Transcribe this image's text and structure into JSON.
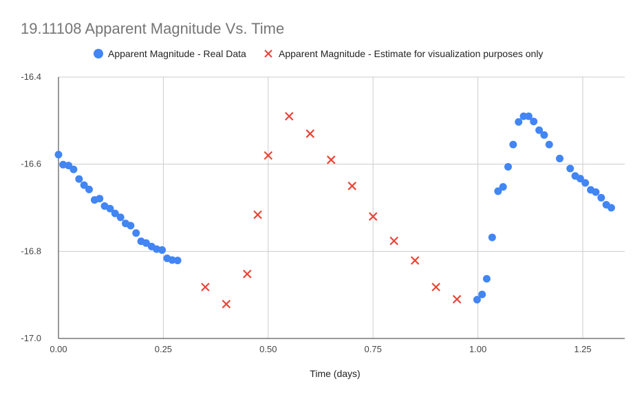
{
  "chart_data": {
    "type": "scatter",
    "title": "19.11108 Apparent Magnitude Vs. Time",
    "xlabel": "Time (days)",
    "ylabel": "",
    "xlim": [
      0,
      1.35
    ],
    "ylim": [
      -17.0,
      -16.4
    ],
    "y_reversed": true,
    "x_ticks": [
      "0.00",
      "0.25",
      "0.50",
      "0.75",
      "1.00",
      "1.25"
    ],
    "x_tick_values": [
      0,
      0.25,
      0.5,
      0.75,
      1.0,
      1.25
    ],
    "y_ticks": [
      "-16.4",
      "-16.6",
      "-16.8",
      "-17.0"
    ],
    "y_tick_values": [
      -16.4,
      -16.6,
      -16.8,
      -17.0
    ],
    "grid": true,
    "legend_position": "top",
    "series": [
      {
        "name": "Apparent Magnitude - Real Data",
        "marker": "circle",
        "color": "#4285f4",
        "points": [
          [
            0.0,
            -16.578
          ],
          [
            0.011,
            -16.601
          ],
          [
            0.024,
            -16.603
          ],
          [
            0.036,
            -16.612
          ],
          [
            0.049,
            -16.634
          ],
          [
            0.061,
            -16.648
          ],
          [
            0.073,
            -16.658
          ],
          [
            0.086,
            -16.682
          ],
          [
            0.098,
            -16.679
          ],
          [
            0.11,
            -16.696
          ],
          [
            0.123,
            -16.702
          ],
          [
            0.135,
            -16.713
          ],
          [
            0.148,
            -16.722
          ],
          [
            0.16,
            -16.736
          ],
          [
            0.172,
            -16.741
          ],
          [
            0.185,
            -16.758
          ],
          [
            0.197,
            -16.777
          ],
          [
            0.209,
            -16.781
          ],
          [
            0.222,
            -16.789
          ],
          [
            0.234,
            -16.795
          ],
          [
            0.247,
            -16.797
          ],
          [
            0.259,
            -16.816
          ],
          [
            0.271,
            -16.82
          ],
          [
            0.284,
            -16.821
          ],
          [
            0.998,
            -16.911
          ],
          [
            1.01,
            -16.899
          ],
          [
            1.021,
            -16.863
          ],
          [
            1.034,
            -16.768
          ],
          [
            1.048,
            -16.662
          ],
          [
            1.06,
            -16.652
          ],
          [
            1.072,
            -16.606
          ],
          [
            1.084,
            -16.555
          ],
          [
            1.097,
            -16.503
          ],
          [
            1.109,
            -16.49
          ],
          [
            1.121,
            -16.49
          ],
          [
            1.133,
            -16.502
          ],
          [
            1.146,
            -16.522
          ],
          [
            1.158,
            -16.533
          ],
          [
            1.17,
            -16.555
          ],
          [
            1.195,
            -16.587
          ],
          [
            1.22,
            -16.61
          ],
          [
            1.232,
            -16.627
          ],
          [
            1.244,
            -16.633
          ],
          [
            1.256,
            -16.643
          ],
          [
            1.269,
            -16.659
          ],
          [
            1.281,
            -16.664
          ],
          [
            1.294,
            -16.677
          ],
          [
            1.306,
            -16.693
          ],
          [
            1.318,
            -16.7
          ]
        ]
      },
      {
        "name": "Apparent Magnitude - Estimate for visualization purposes only",
        "marker": "x",
        "color": "#ea4335",
        "points": [
          [
            0.35,
            -16.882
          ],
          [
            0.4,
            -16.921
          ],
          [
            0.45,
            -16.852
          ],
          [
            0.475,
            -16.716
          ],
          [
            0.5,
            -16.58
          ],
          [
            0.55,
            -16.49
          ],
          [
            0.6,
            -16.53
          ],
          [
            0.65,
            -16.59
          ],
          [
            0.7,
            -16.65
          ],
          [
            0.75,
            -16.72
          ],
          [
            0.8,
            -16.776
          ],
          [
            0.85,
            -16.821
          ],
          [
            0.9,
            -16.882
          ],
          [
            0.95,
            -16.91
          ]
        ]
      }
    ]
  }
}
